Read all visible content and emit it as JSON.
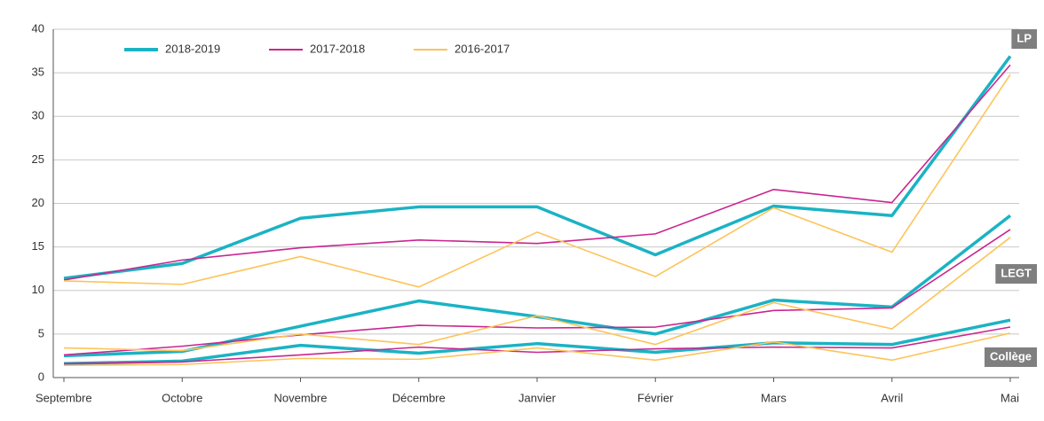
{
  "chart_data": {
    "type": "line",
    "categories": [
      "Septembre",
      "Octobre",
      "Novembre",
      "Décembre",
      "Janvier",
      "Février",
      "Mars",
      "Avril",
      "Mai"
    ],
    "series": [
      {
        "name": "2018-2019",
        "color": "#1ab3c4",
        "values": [
          11.4,
          13.1,
          18.3,
          19.6,
          19.6,
          14.1,
          19.7,
          18.6,
          36.9
        ]
      },
      {
        "name": "2017-2018",
        "color": "#c9268f",
        "values": [
          11.2,
          13.5,
          14.9,
          15.8,
          15.4,
          16.5,
          21.6,
          20.1,
          35.9
        ]
      },
      {
        "name": "2016-2017",
        "color": "#fcc45a",
        "values": [
          11.1,
          10.7,
          13.9,
          10.4,
          16.7,
          11.6,
          19.5,
          14.4,
          34.8
        ]
      },
      {
        "name": "2018-2019",
        "color": "#1ab3c4",
        "values": [
          2.5,
          3.0,
          5.9,
          8.8,
          7.0,
          5.0,
          8.9,
          8.1,
          18.6
        ]
      },
      {
        "name": "2017-2018",
        "color": "#c9268f",
        "values": [
          2.6,
          3.6,
          4.9,
          6.0,
          5.7,
          5.8,
          7.7,
          8.0,
          17.0
        ]
      },
      {
        "name": "2016-2017",
        "color": "#fcc45a",
        "values": [
          3.4,
          3.1,
          5.0,
          3.8,
          7.1,
          3.8,
          8.6,
          5.6,
          16.1
        ]
      },
      {
        "name": "2018-2019",
        "color": "#1ab3c4",
        "values": [
          1.6,
          1.9,
          3.7,
          2.8,
          3.9,
          2.9,
          4.0,
          3.8,
          6.6
        ]
      },
      {
        "name": "2017-2018",
        "color": "#c9268f",
        "values": [
          1.6,
          1.8,
          2.6,
          3.5,
          2.9,
          3.3,
          3.5,
          3.4,
          5.8
        ]
      },
      {
        "name": "2016-2017",
        "color": "#fcc45a",
        "values": [
          1.4,
          1.5,
          2.2,
          2.1,
          3.4,
          2.0,
          4.1,
          2.0,
          5.1
        ]
      }
    ],
    "annotations": [
      "LP",
      "LEGT",
      "Collège"
    ],
    "ylim": [
      0,
      40
    ],
    "yticks": [
      0,
      5,
      10,
      15,
      20,
      25,
      30,
      35,
      40
    ],
    "grid": true
  }
}
